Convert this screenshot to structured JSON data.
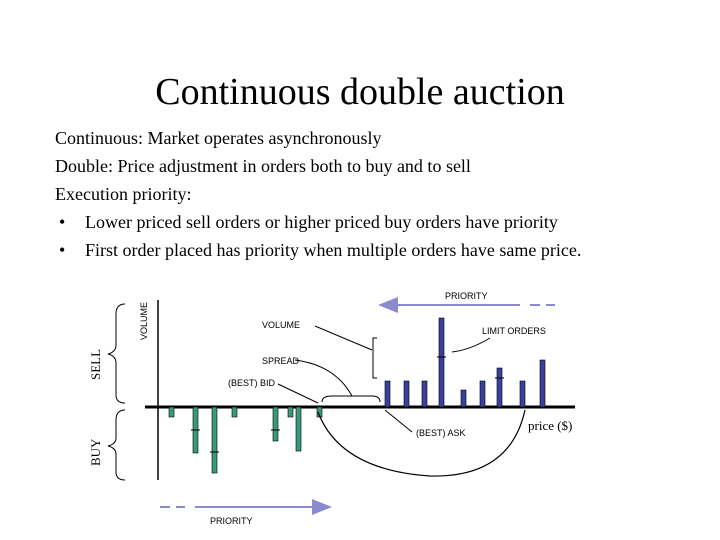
{
  "title": "Continuous double auction",
  "lines": [
    "Continuous: Market operates asynchronously",
    "Double: Price adjustment in orders both to buy and to sell",
    "Execution priority:"
  ],
  "bullets": [
    "Lower priced sell orders or higher priced buy orders have priority",
    "First order placed has priority when multiple orders have same price."
  ],
  "bullet_char": "•",
  "diagram": {
    "priority_top": "PRIORITY",
    "priority_bottom": "PRIORITY",
    "volume_axis": "VOLUME",
    "sell": "SELL",
    "buy": "BUY",
    "volume_callout": "VOLUME",
    "limit_orders": "LIMIT ORDERS",
    "spread": "SPREAD",
    "best_bid": "(BEST) BID",
    "best_ask": "(BEST) ASK",
    "price": "price ($)",
    "colors": {
      "sell_bar": "#3b3f9e",
      "buy_bar": "#3a9a78",
      "arrow": "#8a8ad0",
      "axis": "#000000"
    }
  }
}
